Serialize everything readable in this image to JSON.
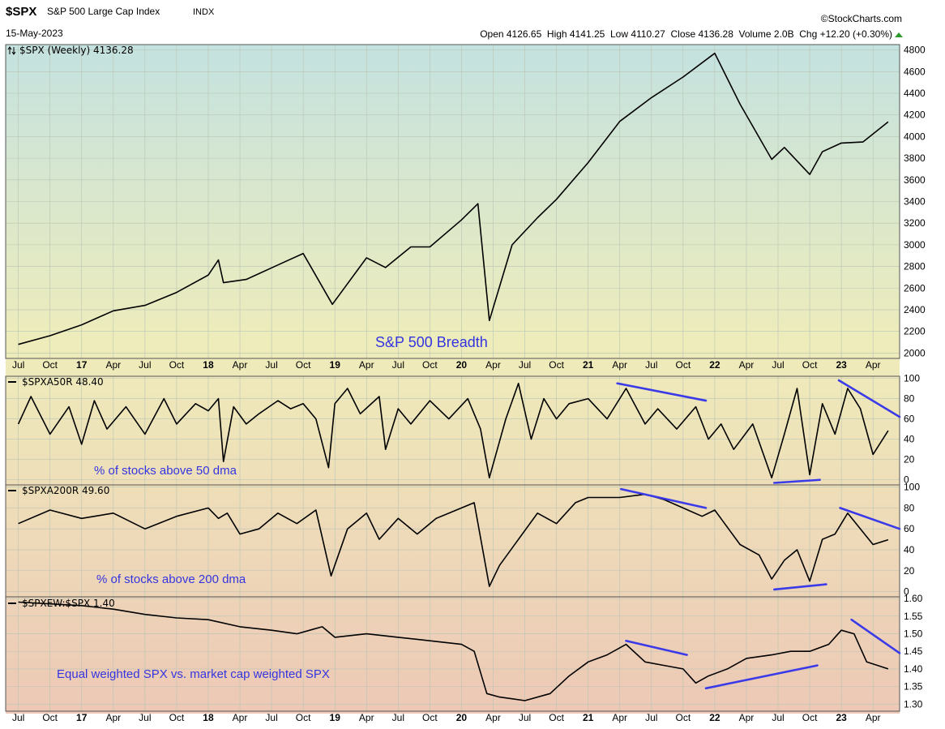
{
  "header": {
    "symbol": "$SPX",
    "name": "S&P 500 Large Cap Index",
    "exchange": "INDX",
    "date": "15-May-2023",
    "source": "©StockCharts.com",
    "ohlc_text": "Open 4126.65  High 4141.25  Low 4110.27  Close 4136.28  Volume 2.0B  Chg +12.20 (+0.30%)"
  },
  "colors": {
    "trend_line": "#3a3ae8",
    "annotation": "#3535e0",
    "series": "#000000",
    "up_arrow": "#2e9a2e"
  },
  "chart_data": [
    {
      "type": "line",
      "title": "$SPX (Weekly) 4136.28",
      "annotation": "S&P 500 Breadth",
      "ylim": [
        1950,
        4850
      ],
      "yticks": [
        2000,
        2200,
        2400,
        2600,
        2800,
        3000,
        3200,
        3400,
        3600,
        3800,
        4000,
        4200,
        4400,
        4600,
        4800
      ],
      "x": [
        2016.5,
        2016.75,
        2017.0,
        2017.25,
        2017.5,
        2017.75,
        2018.0,
        2018.08,
        2018.12,
        2018.3,
        2018.6,
        2018.75,
        2018.98,
        2019.25,
        2019.4,
        2019.6,
        2019.75,
        2020.0,
        2020.13,
        2020.22,
        2020.4,
        2020.6,
        2020.75,
        2021.0,
        2021.25,
        2021.5,
        2021.75,
        2022.0,
        2022.2,
        2022.45,
        2022.55,
        2022.75,
        2022.85,
        2023.0,
        2023.17,
        2023.37
      ],
      "y": [
        2080,
        2160,
        2260,
        2390,
        2440,
        2560,
        2720,
        2860,
        2650,
        2680,
        2840,
        2920,
        2450,
        2880,
        2790,
        2980,
        2980,
        3230,
        3380,
        2300,
        3000,
        3250,
        3420,
        3760,
        4140,
        4360,
        4550,
        4770,
        4300,
        3790,
        3900,
        3650,
        3860,
        3940,
        3950,
        4136
      ]
    },
    {
      "type": "line",
      "title": "$SPXA50R 48.40",
      "annotation": "% of stocks above 50 dma",
      "ylim": [
        -5,
        102
      ],
      "yticks": [
        0,
        20,
        40,
        60,
        80,
        100
      ],
      "x": [
        2016.5,
        2016.6,
        2016.75,
        2016.9,
        2017.0,
        2017.1,
        2017.2,
        2017.35,
        2017.5,
        2017.65,
        2017.75,
        2017.9,
        2018.0,
        2018.08,
        2018.12,
        2018.2,
        2018.3,
        2018.4,
        2018.55,
        2018.65,
        2018.75,
        2018.85,
        2018.95,
        2019.0,
        2019.1,
        2019.2,
        2019.35,
        2019.4,
        2019.5,
        2019.6,
        2019.75,
        2019.9,
        2020.05,
        2020.15,
        2020.22,
        2020.35,
        2020.45,
        2020.55,
        2020.65,
        2020.75,
        2020.85,
        2021.0,
        2021.15,
        2021.3,
        2021.45,
        2021.55,
        2021.7,
        2021.85,
        2021.95,
        2022.05,
        2022.15,
        2022.3,
        2022.45,
        2022.55,
        2022.65,
        2022.75,
        2022.85,
        2022.95,
        2023.05,
        2023.15,
        2023.25,
        2023.37
      ],
      "y": [
        55,
        82,
        45,
        72,
        35,
        78,
        50,
        72,
        45,
        80,
        55,
        75,
        68,
        80,
        18,
        72,
        55,
        65,
        78,
        70,
        75,
        60,
        12,
        75,
        90,
        65,
        82,
        30,
        70,
        55,
        78,
        60,
        80,
        50,
        2,
        60,
        95,
        40,
        80,
        60,
        75,
        80,
        60,
        90,
        55,
        70,
        50,
        72,
        40,
        55,
        30,
        55,
        2,
        45,
        90,
        5,
        75,
        45,
        90,
        70,
        25,
        48.4
      ]
    },
    {
      "type": "line",
      "title": "$SPXA200R 49.60",
      "annotation": "% of stocks above 200 dma",
      "ylim": [
        -5,
        102
      ],
      "yticks": [
        0,
        20,
        40,
        60,
        80,
        100
      ],
      "x": [
        2016.5,
        2016.75,
        2017.0,
        2017.25,
        2017.5,
        2017.75,
        2018.0,
        2018.08,
        2018.15,
        2018.25,
        2018.4,
        2018.55,
        2018.7,
        2018.85,
        2018.97,
        2019.1,
        2019.25,
        2019.35,
        2019.5,
        2019.65,
        2019.8,
        2020.0,
        2020.1,
        2020.22,
        2020.3,
        2020.45,
        2020.6,
        2020.75,
        2020.9,
        2021.0,
        2021.25,
        2021.45,
        2021.6,
        2021.75,
        2021.9,
        2022.0,
        2022.2,
        2022.35,
        2022.45,
        2022.55,
        2022.65,
        2022.75,
        2022.85,
        2022.95,
        2023.05,
        2023.15,
        2023.25,
        2023.37
      ],
      "y": [
        65,
        78,
        70,
        75,
        60,
        72,
        80,
        70,
        75,
        55,
        60,
        75,
        65,
        78,
        15,
        60,
        75,
        50,
        70,
        55,
        70,
        80,
        85,
        5,
        25,
        50,
        75,
        65,
        85,
        90,
        90,
        93,
        88,
        80,
        72,
        78,
        45,
        35,
        12,
        30,
        40,
        10,
        50,
        55,
        75,
        60,
        45,
        49.6
      ]
    },
    {
      "type": "line",
      "title": "$SPXEW:$SPX 1.40",
      "annotation": "Equal weighted SPX vs. market cap weighted SPX",
      "ylim": [
        1.28,
        1.605
      ],
      "yticks": [
        1.3,
        1.35,
        1.4,
        1.45,
        1.5,
        1.55,
        1.6
      ],
      "x": [
        2016.5,
        2016.75,
        2017.0,
        2017.25,
        2017.5,
        2017.75,
        2018.0,
        2018.25,
        2018.5,
        2018.7,
        2018.9,
        2019.0,
        2019.25,
        2019.5,
        2019.75,
        2020.0,
        2020.1,
        2020.2,
        2020.3,
        2020.5,
        2020.7,
        2020.85,
        2021.0,
        2021.15,
        2021.3,
        2021.45,
        2021.6,
        2021.75,
        2021.85,
        2021.95,
        2022.1,
        2022.25,
        2022.45,
        2022.6,
        2022.75,
        2022.9,
        2023.0,
        2023.1,
        2023.2,
        2023.37
      ],
      "y": [
        1.59,
        1.585,
        1.58,
        1.57,
        1.555,
        1.545,
        1.54,
        1.52,
        1.51,
        1.5,
        1.52,
        1.49,
        1.5,
        1.49,
        1.48,
        1.47,
        1.45,
        1.33,
        1.32,
        1.31,
        1.33,
        1.38,
        1.42,
        1.44,
        1.47,
        1.42,
        1.41,
        1.4,
        1.36,
        1.38,
        1.4,
        1.43,
        1.44,
        1.45,
        1.45,
        1.47,
        1.51,
        1.5,
        1.42,
        1.4
      ]
    }
  ],
  "x_axis": {
    "range": [
      2016.4,
      2023.46
    ],
    "labels": [
      {
        "t": 2016.5,
        "label": "Jul"
      },
      {
        "t": 2016.75,
        "label": "Oct"
      },
      {
        "t": 2017.0,
        "label": "17",
        "year": true
      },
      {
        "t": 2017.25,
        "label": "Apr"
      },
      {
        "t": 2017.5,
        "label": "Jul"
      },
      {
        "t": 2017.75,
        "label": "Oct"
      },
      {
        "t": 2018.0,
        "label": "18",
        "year": true
      },
      {
        "t": 2018.25,
        "label": "Apr"
      },
      {
        "t": 2018.5,
        "label": "Jul"
      },
      {
        "t": 2018.75,
        "label": "Oct"
      },
      {
        "t": 2019.0,
        "label": "19",
        "year": true
      },
      {
        "t": 2019.25,
        "label": "Apr"
      },
      {
        "t": 2019.5,
        "label": "Jul"
      },
      {
        "t": 2019.75,
        "label": "Oct"
      },
      {
        "t": 2020.0,
        "label": "20",
        "year": true
      },
      {
        "t": 2020.25,
        "label": "Apr"
      },
      {
        "t": 2020.5,
        "label": "Jul"
      },
      {
        "t": 2020.75,
        "label": "Oct"
      },
      {
        "t": 2021.0,
        "label": "21",
        "year": true
      },
      {
        "t": 2021.25,
        "label": "Apr"
      },
      {
        "t": 2021.5,
        "label": "Jul"
      },
      {
        "t": 2021.75,
        "label": "Oct"
      },
      {
        "t": 2022.0,
        "label": "22",
        "year": true
      },
      {
        "t": 2022.25,
        "label": "Apr"
      },
      {
        "t": 2022.5,
        "label": "Jul"
      },
      {
        "t": 2022.75,
        "label": "Oct"
      },
      {
        "t": 2023.0,
        "label": "23",
        "year": true
      },
      {
        "t": 2023.25,
        "label": "Apr"
      }
    ]
  },
  "trend_lines": [
    {
      "panel": 1,
      "x1": 2021.23,
      "y1": 95,
      "x2": 2021.93,
      "y2": 78
    },
    {
      "panel": 1,
      "x1": 2022.47,
      "y1": -3,
      "x2": 2022.83,
      "y2": 0
    },
    {
      "panel": 1,
      "x1": 2022.98,
      "y1": 98,
      "x2": 2023.46,
      "y2": 62
    },
    {
      "panel": 2,
      "x1": 2021.26,
      "y1": 98,
      "x2": 2021.93,
      "y2": 80
    },
    {
      "panel": 2,
      "x1": 2022.47,
      "y1": 2,
      "x2": 2022.88,
      "y2": 7
    },
    {
      "panel": 2,
      "x1": 2022.99,
      "y1": 80,
      "x2": 2023.46,
      "y2": 60
    },
    {
      "panel": 3,
      "x1": 2021.3,
      "y1": 1.48,
      "x2": 2021.78,
      "y2": 1.44
    },
    {
      "panel": 3,
      "x1": 2021.93,
      "y1": 1.345,
      "x2": 2022.81,
      "y2": 1.41
    },
    {
      "panel": 3,
      "x1": 2023.08,
      "y1": 1.54,
      "x2": 2023.46,
      "y2": 1.445
    }
  ]
}
